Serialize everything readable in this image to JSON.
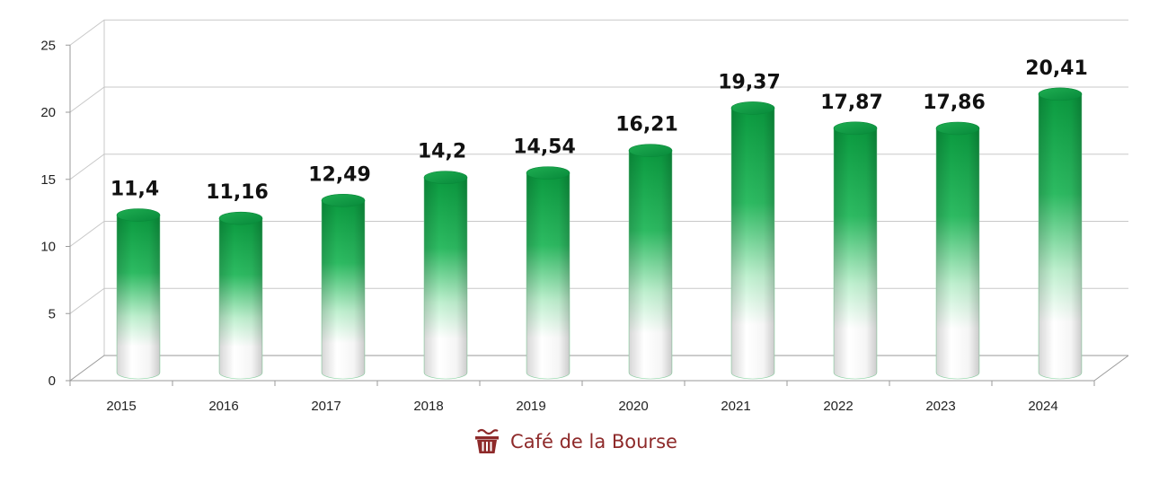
{
  "chart_data": {
    "type": "bar",
    "categories": [
      "2015",
      "2016",
      "2017",
      "2018",
      "2019",
      "2020",
      "2021",
      "2022",
      "2023",
      "2024"
    ],
    "values": [
      11.4,
      11.16,
      12.49,
      14.2,
      14.54,
      16.21,
      19.37,
      17.87,
      17.86,
      20.41
    ],
    "data_labels": [
      "11,4",
      "11,16",
      "12,49",
      "14,2",
      "14,54",
      "16,21",
      "19,37",
      "17,87",
      "17,86",
      "20,41"
    ],
    "yticks": [
      0,
      5,
      10,
      15,
      20,
      25
    ],
    "ylim": [
      0,
      25
    ],
    "grid": true,
    "legend": "none",
    "bar_style": "3d-cylinder",
    "bar_color_top": "#0a9a3f",
    "bar_color_bottom": "#ffffff"
  },
  "watermark": {
    "text": "Café de la Bourse",
    "icon": "coffee-cup-icon",
    "color": "#8e2a2a"
  }
}
